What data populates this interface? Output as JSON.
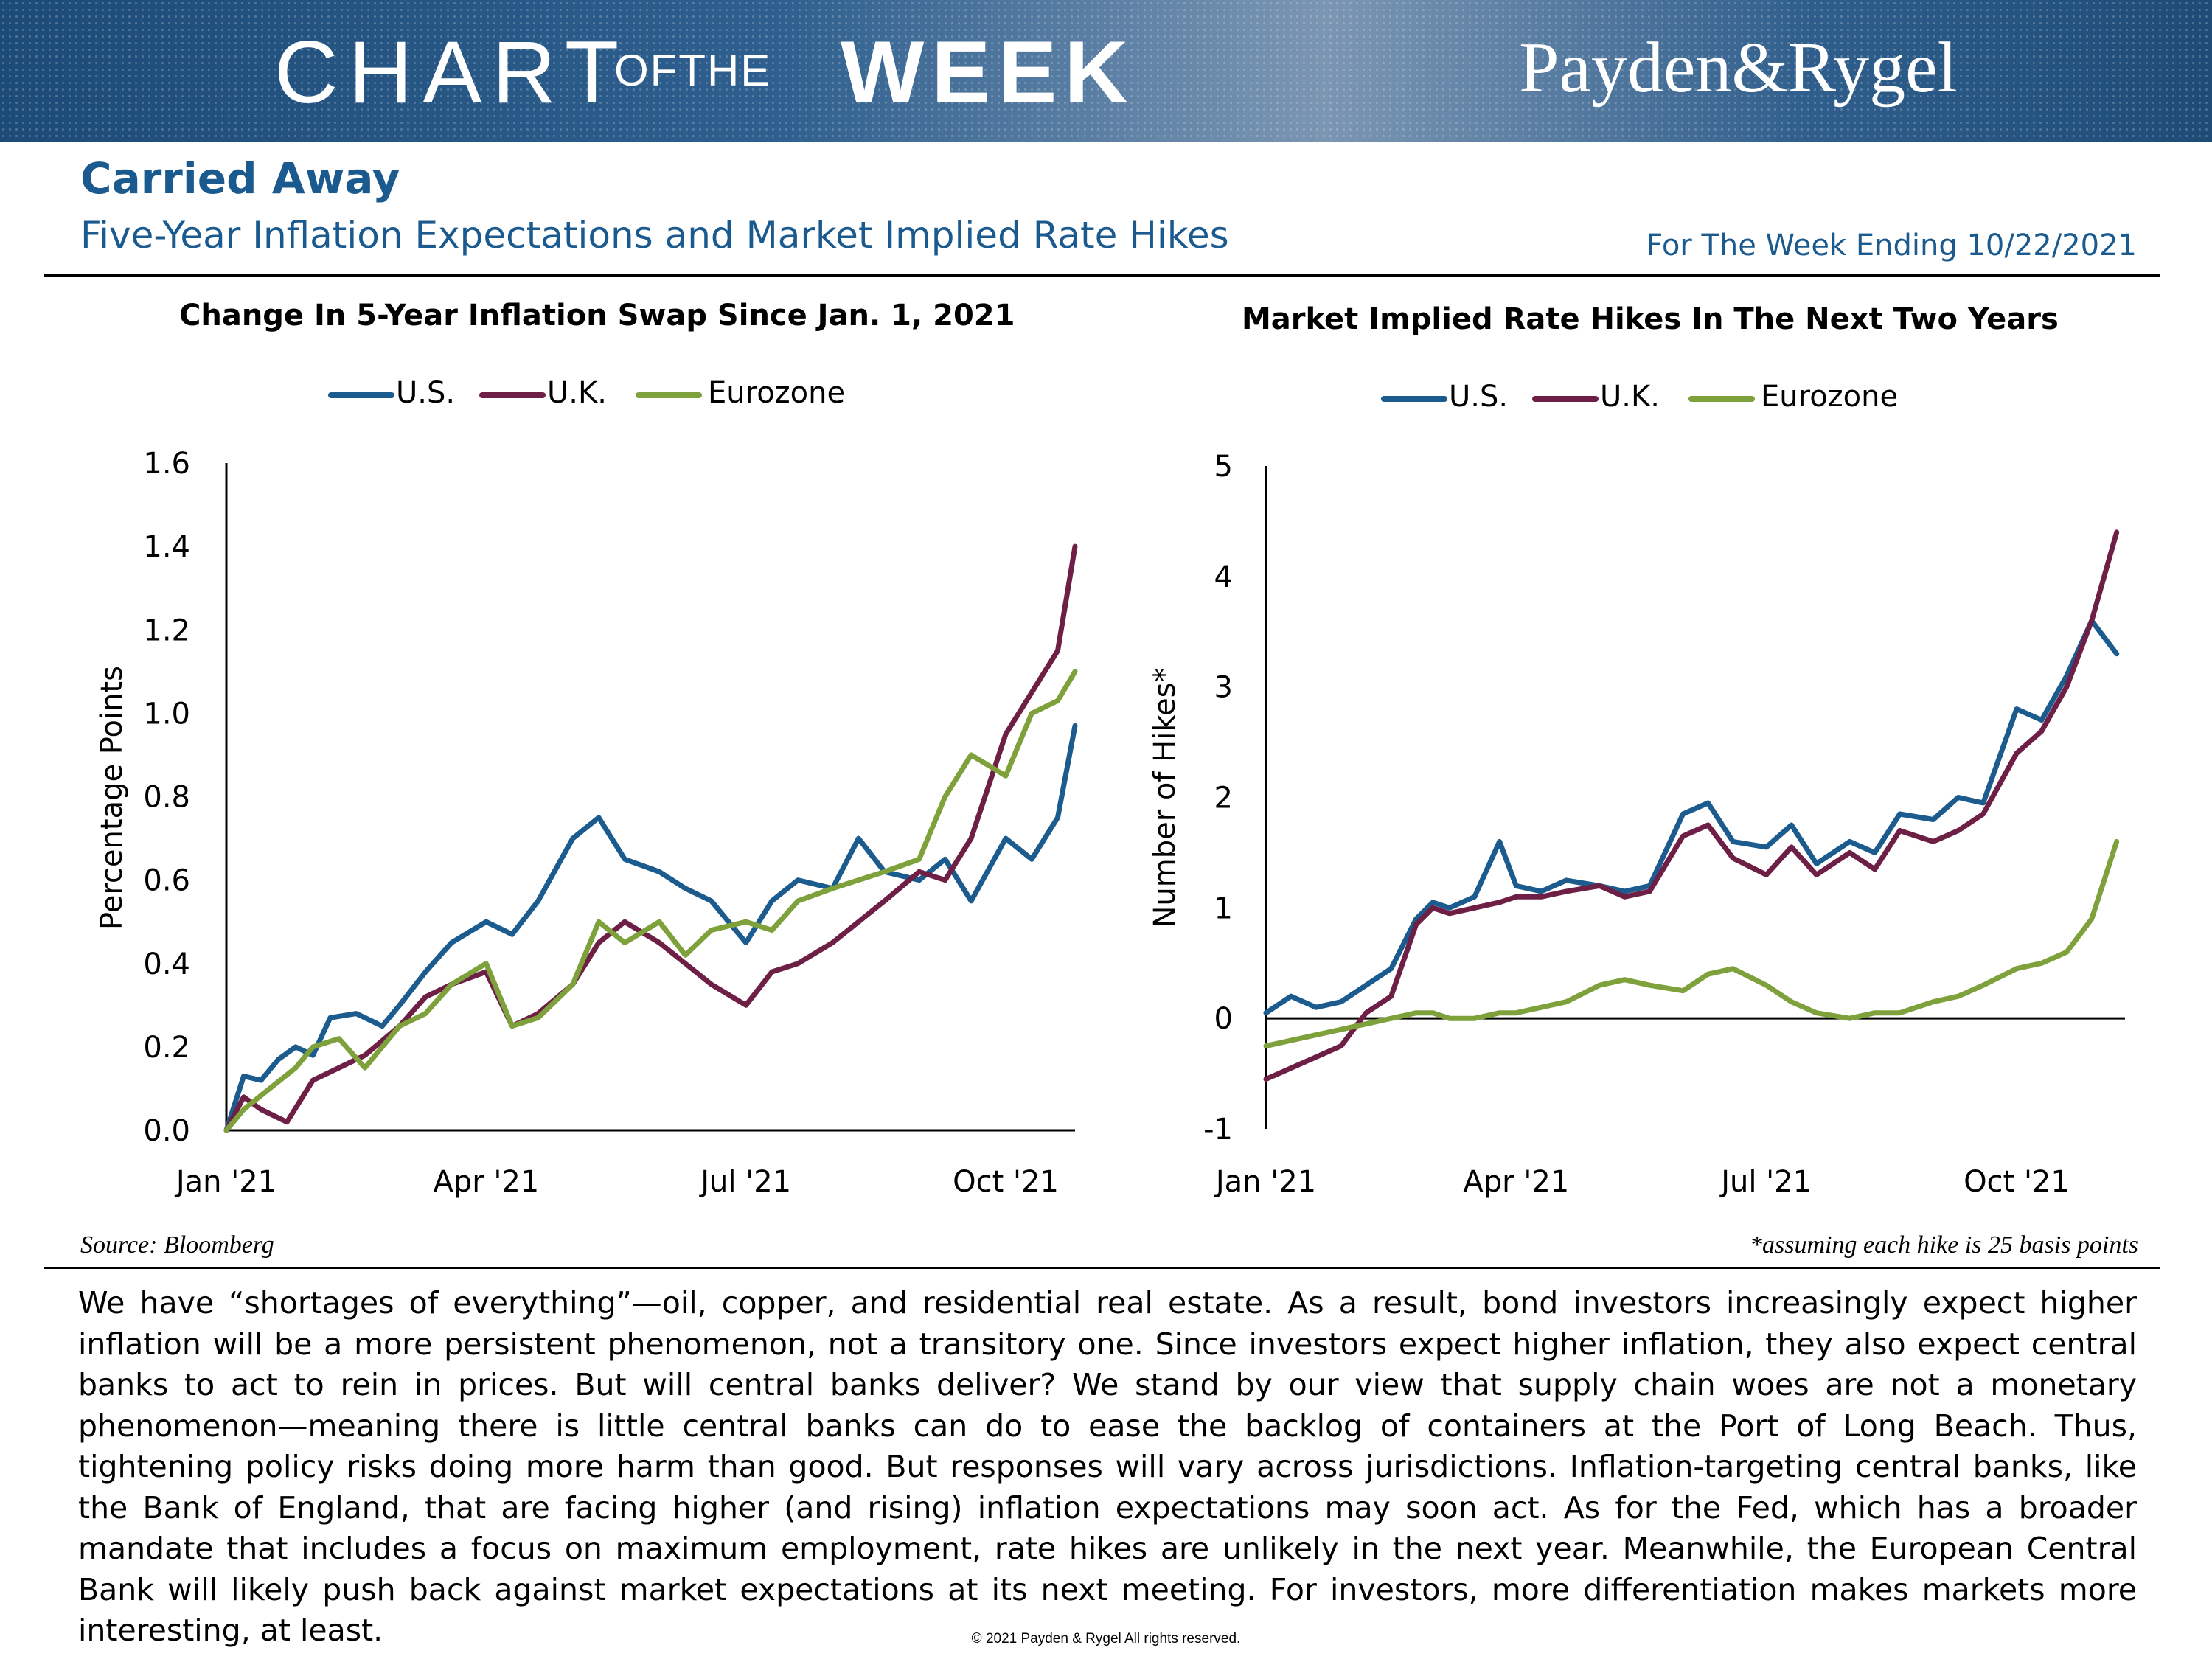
{
  "banner": {
    "chart_word": "CHART",
    "ofthe_word": "OFTHE",
    "week_word": "WEEK",
    "company": "Payden&Rygel"
  },
  "headline": "Carried Away",
  "subtitle": "Five-Year Inflation Expectations and Market Implied Rate Hikes",
  "week_ending": "For The Week Ending 10/22/2021",
  "colors": {
    "us": "#1b5b8e",
    "uk": "#6e1f45",
    "eurozone": "#7ea13c",
    "brand": "#1b5a8e"
  },
  "chart_data": [
    {
      "type": "line",
      "title": "Change In 5-Year Inflation Swap Since Jan. 1, 2021",
      "ylabel": "Percentage Points",
      "xlabel": "",
      "ylim": [
        0.0,
        1.6
      ],
      "yticks": [
        "0.0",
        "0.2",
        "0.4",
        "0.6",
        "0.8",
        "1.0",
        "1.2",
        "1.4",
        "1.6"
      ],
      "xticks": [
        "Jan '21",
        "Apr '21",
        "Jul '21",
        "Oct '21"
      ],
      "xlim_months": [
        0,
        9.8
      ],
      "legend": [
        "U.S.",
        "U.K.",
        "Eurozone"
      ],
      "series": [
        {
          "name": "U.S.",
          "x": [
            0,
            0.2,
            0.4,
            0.6,
            0.8,
            1.0,
            1.2,
            1.5,
            1.8,
            2.0,
            2.3,
            2.6,
            3.0,
            3.3,
            3.6,
            4.0,
            4.3,
            4.6,
            5.0,
            5.3,
            5.6,
            6.0,
            6.3,
            6.6,
            7.0,
            7.3,
            7.6,
            8.0,
            8.3,
            8.6,
            9.0,
            9.3,
            9.6,
            9.8
          ],
          "values": [
            0,
            0.13,
            0.12,
            0.17,
            0.2,
            0.18,
            0.27,
            0.28,
            0.25,
            0.3,
            0.38,
            0.45,
            0.5,
            0.47,
            0.55,
            0.7,
            0.75,
            0.65,
            0.62,
            0.58,
            0.55,
            0.45,
            0.55,
            0.6,
            0.58,
            0.7,
            0.62,
            0.6,
            0.65,
            0.55,
            0.7,
            0.65,
            0.75,
            0.97
          ]
        },
        {
          "name": "U.K.",
          "x": [
            0,
            0.2,
            0.4,
            0.7,
            1.0,
            1.3,
            1.6,
            2.0,
            2.3,
            2.6,
            3.0,
            3.3,
            3.6,
            4.0,
            4.3,
            4.6,
            5.0,
            5.3,
            5.6,
            6.0,
            6.3,
            6.6,
            7.0,
            7.3,
            7.6,
            8.0,
            8.3,
            8.6,
            9.0,
            9.3,
            9.6,
            9.8
          ],
          "values": [
            0,
            0.08,
            0.05,
            0.02,
            0.12,
            0.15,
            0.18,
            0.25,
            0.32,
            0.35,
            0.38,
            0.25,
            0.28,
            0.35,
            0.45,
            0.5,
            0.45,
            0.4,
            0.35,
            0.3,
            0.38,
            0.4,
            0.45,
            0.5,
            0.55,
            0.62,
            0.6,
            0.7,
            0.95,
            1.05,
            1.15,
            1.4
          ]
        },
        {
          "name": "Eurozone",
          "x": [
            0,
            0.2,
            0.5,
            0.8,
            1.0,
            1.3,
            1.6,
            2.0,
            2.3,
            2.6,
            3.0,
            3.3,
            3.6,
            4.0,
            4.3,
            4.6,
            5.0,
            5.3,
            5.6,
            6.0,
            6.3,
            6.6,
            7.0,
            7.3,
            7.6,
            8.0,
            8.3,
            8.6,
            9.0,
            9.3,
            9.6,
            9.8
          ],
          "values": [
            0,
            0.05,
            0.1,
            0.15,
            0.2,
            0.22,
            0.15,
            0.25,
            0.28,
            0.35,
            0.4,
            0.25,
            0.27,
            0.35,
            0.5,
            0.45,
            0.5,
            0.42,
            0.48,
            0.5,
            0.48,
            0.55,
            0.58,
            0.6,
            0.62,
            0.65,
            0.8,
            0.9,
            0.85,
            1.0,
            1.03,
            1.1
          ]
        }
      ]
    },
    {
      "type": "line",
      "title": "Market Implied Rate Hikes In The Next Two Years",
      "ylabel": "Number of Hikes*",
      "xlabel": "",
      "ylim": [
        -1,
        5
      ],
      "yticks": [
        "-1",
        "0",
        "1",
        "2",
        "3",
        "4",
        "5"
      ],
      "xticks": [
        "Jan '21",
        "Apr '21",
        "Jul '21",
        "Oct '21"
      ],
      "xlim_months": [
        0,
        10.3
      ],
      "legend": [
        "U.S.",
        "U.K.",
        "Eurozone"
      ],
      "series": [
        {
          "name": "U.S.",
          "x": [
            0,
            0.3,
            0.6,
            0.9,
            1.2,
            1.5,
            1.8,
            2.0,
            2.2,
            2.5,
            2.8,
            3.0,
            3.3,
            3.6,
            4.0,
            4.3,
            4.6,
            5.0,
            5.3,
            5.6,
            6.0,
            6.3,
            6.6,
            7.0,
            7.3,
            7.6,
            8.0,
            8.3,
            8.6,
            9.0,
            9.3,
            9.6,
            9.9,
            10.2
          ],
          "values": [
            0.05,
            0.2,
            0.1,
            0.15,
            0.3,
            0.45,
            0.9,
            1.05,
            1.0,
            1.1,
            1.6,
            1.2,
            1.15,
            1.25,
            1.2,
            1.15,
            1.2,
            1.85,
            1.95,
            1.6,
            1.55,
            1.75,
            1.4,
            1.6,
            1.5,
            1.85,
            1.8,
            2.0,
            1.95,
            2.8,
            2.7,
            3.1,
            3.6,
            3.3
          ]
        },
        {
          "name": "U.K.",
          "x": [
            0,
            0.3,
            0.6,
            0.9,
            1.2,
            1.5,
            1.8,
            2.0,
            2.2,
            2.5,
            2.8,
            3.0,
            3.3,
            3.6,
            4.0,
            4.3,
            4.6,
            5.0,
            5.3,
            5.6,
            6.0,
            6.3,
            6.6,
            7.0,
            7.3,
            7.6,
            8.0,
            8.3,
            8.6,
            9.0,
            9.3,
            9.6,
            9.9,
            10.2
          ],
          "values": [
            -0.55,
            -0.45,
            -0.35,
            -0.25,
            0.05,
            0.2,
            0.85,
            1.0,
            0.95,
            1.0,
            1.05,
            1.1,
            1.1,
            1.15,
            1.2,
            1.1,
            1.15,
            1.65,
            1.75,
            1.45,
            1.3,
            1.55,
            1.3,
            1.5,
            1.35,
            1.7,
            1.6,
            1.7,
            1.85,
            2.4,
            2.6,
            3.0,
            3.6,
            4.4
          ]
        },
        {
          "name": "Eurozone",
          "x": [
            0,
            0.3,
            0.6,
            0.9,
            1.2,
            1.5,
            1.8,
            2.0,
            2.2,
            2.5,
            2.8,
            3.0,
            3.3,
            3.6,
            4.0,
            4.3,
            4.6,
            5.0,
            5.3,
            5.6,
            6.0,
            6.3,
            6.6,
            7.0,
            7.3,
            7.6,
            8.0,
            8.3,
            8.6,
            9.0,
            9.3,
            9.6,
            9.9,
            10.2
          ],
          "values": [
            -0.25,
            -0.2,
            -0.15,
            -0.1,
            -0.05,
            0.0,
            0.05,
            0.05,
            0.0,
            0.0,
            0.05,
            0.05,
            0.1,
            0.15,
            0.3,
            0.35,
            0.3,
            0.25,
            0.4,
            0.45,
            0.3,
            0.15,
            0.05,
            0.0,
            0.05,
            0.05,
            0.15,
            0.2,
            0.3,
            0.45,
            0.5,
            0.6,
            0.9,
            1.6
          ]
        }
      ]
    }
  ],
  "source": "Source: Bloomberg",
  "footnote": "*assuming each hike is 25 basis points",
  "body": "We have “shortages of everything”—oil, copper, and residential real estate. As a result, bond investors increasingly expect higher inflation will be a more persistent phenomenon, not a transitory one. Since investors expect higher inflation, they also expect central banks to act to rein in prices. But will central banks deliver? We stand by our view that supply chain woes are not a monetary phenomenon—meaning there is little central banks can do to ease the backlog of containers at the Port of Long Beach. Thus, tightening policy risks doing more harm than good. But responses will vary across jurisdictions. Inflation-targeting central banks, like the Bank of England, that are facing higher (and rising) inflation expectations may soon act. As for the Fed, which has a broader mandate that includes a focus on maximum employment, rate hikes are unlikely in the next year. Meanwhile, the European Central Bank will likely push back against market expectations at its next meeting. For investors, more differentiation makes markets more interesting, at least.",
  "copyright": "© 2021 Payden & Rygel All rights reserved."
}
